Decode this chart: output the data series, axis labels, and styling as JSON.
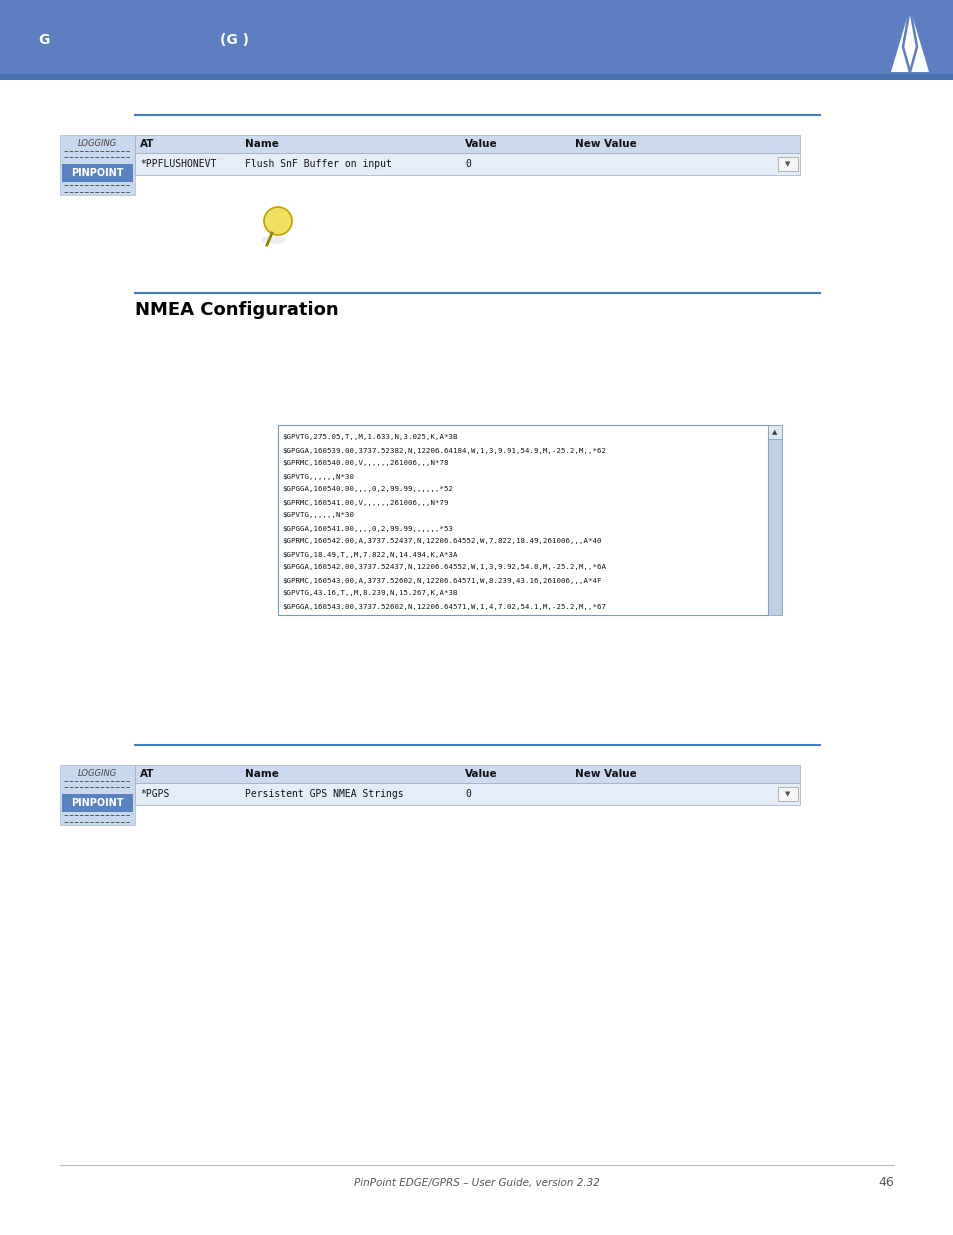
{
  "page_bg": "#ffffff",
  "header_bg": "#5b7fc0",
  "header_text1": "G",
  "header_text2": "(G )",
  "header_text_color": "#ffffff",
  "section_title": "NMEA Configuration",
  "section_title_color": "#000000",
  "section_title_fontsize": 13,
  "blue_line_color": "#4080bf",
  "pinpoint_label": "PINPOINT",
  "pinpoint_bg": "#5b82c0",
  "sidebar_bg": "#c8d8ee",
  "table_header_bg": "#ccd9ee",
  "table_row_bg": "#e4edf8",
  "footer_text": "PinPoint EDGE/GPRS – User Guide, version 2.32",
  "footer_page": "46",
  "footer_color": "#555555",
  "terminal_lines": [
    "$GPVTG,275.05,T,,M,1.633,N,3.025,K,A*3B",
    "$GPGGA,160539.00,3737.52382,N,12206.64184,W,1,3,9.91,54.9,M,-25.2,M,,*62",
    "$GPRMC,160540.00,V,,,,,,261006,,,N*78",
    "$GPVTG,,,,,,N*30",
    "$GPGGA,160540.00,,,,0,2,99.99,,,,,,*52",
    "$GPRMC,160541.00,V,,,,,,261006,,,N*79",
    "$GPVTG,,,,,,N*30",
    "$GPGGA,160541.00,,,,0,2,99.99,,,,,,*53",
    "$GPRMC,160542.00,A,3737.52437,N,12206.64552,W,7.822,18.49,261006,,,A*40",
    "$GPVTG,18.49,T,,M,7.822,N,14.494,K,A*3A",
    "$GPGGA,160542.00,3737.52437,N,12206.64552,W,1,3,9.92,54.8,M,-25.2,M,,*6A",
    "$GPRMC,160543.00,A,3737.52602,N,12206.64571,W,8.239,43.16,261006,,,A*4F",
    "$GPVTG,43.16,T,,M,8.239,N,15.267,K,A*3B",
    "$GPGGA,160543.00,3737.52602,N,12206.64571,W,1,4,7.02,54.1,M,-25.2,M,,*67"
  ],
  "table2_at": "AT",
  "table2_name": "Name",
  "table2_value": "Value",
  "table2_newvalue": "New Value",
  "table2_row_at": "*PGPS",
  "table2_row_name": "Persistent GPS NMEA Strings",
  "table2_row_value": "0",
  "top_table_at": "AT",
  "top_table_name": "Name",
  "top_table_value": "Value",
  "top_table_newvalue": "New Value",
  "top_table_row_at": "*PPFLUSHONEVT",
  "top_table_row_name": "Flush SnF Buffer on input",
  "top_table_row_value": "0",
  "logging_label": "LOGGING"
}
